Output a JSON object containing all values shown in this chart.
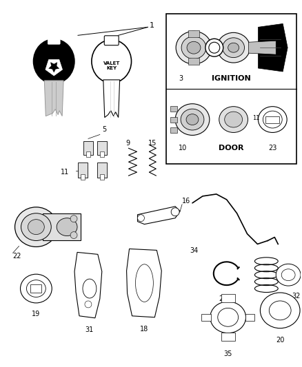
{
  "bg_color": "#ffffff",
  "key_label": "VALET\nKEY",
  "ignition_label": "IGNITION",
  "door_label": "DOOR",
  "figsize": [
    4.38,
    5.33
  ],
  "dpi": 100
}
